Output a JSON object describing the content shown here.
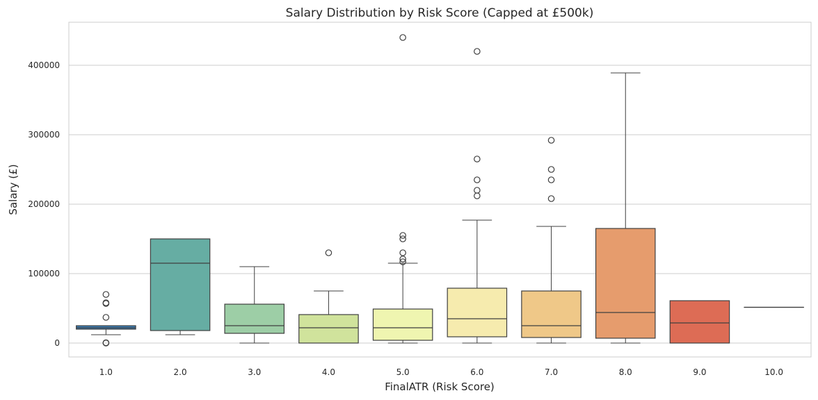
{
  "chart_data": {
    "type": "box",
    "title": "Salary Distribution by Risk Score (Capped at £500k)",
    "xlabel": "FinalATR (Risk Score)",
    "ylabel": "Salary (£)",
    "ylim": [
      -20000,
      462000
    ],
    "yticks": [
      0,
      100000,
      200000,
      300000,
      400000
    ],
    "grid": "horizontal",
    "categories": [
      "1.0",
      "2.0",
      "3.0",
      "4.0",
      "5.0",
      "6.0",
      "7.0",
      "8.0",
      "9.0",
      "10.0"
    ],
    "boxes": [
      {
        "category": "1.0",
        "color": "#3a7fb8",
        "whisker_low": 12000,
        "q1": 20000,
        "median": 22000,
        "q3": 25000,
        "whisker_high": 25000,
        "outliers": [
          70000,
          58000,
          57000,
          37000,
          500,
          0
        ]
      },
      {
        "category": "2.0",
        "color": "#66ada3",
        "whisker_low": 12000,
        "q1": 18000,
        "median": 115000,
        "q3": 150000,
        "whisker_high": 150000,
        "outliers": []
      },
      {
        "category": "3.0",
        "color": "#9dcea6",
        "whisker_low": 0,
        "q1": 14000,
        "median": 25000,
        "q3": 56000,
        "whisker_high": 110000,
        "outliers": []
      },
      {
        "category": "4.0",
        "color": "#d0e39c",
        "whisker_low": 0,
        "q1": 0,
        "median": 22000,
        "q3": 41000,
        "whisker_high": 75000,
        "outliers": [
          130000
        ]
      },
      {
        "category": "5.0",
        "color": "#eff5b0",
        "whisker_low": 0,
        "q1": 4000,
        "median": 22000,
        "q3": 49000,
        "whisker_high": 115000,
        "outliers": [
          440000,
          155000,
          150000,
          130000,
          121000,
          117000
        ]
      },
      {
        "category": "6.0",
        "color": "#f6ebae",
        "whisker_low": 0,
        "q1": 9000,
        "median": 35000,
        "q3": 79000,
        "whisker_high": 177000,
        "outliers": [
          420000,
          265000,
          235000,
          220000,
          212000
        ]
      },
      {
        "category": "7.0",
        "color": "#efc888",
        "whisker_low": 0,
        "q1": 8000,
        "median": 25000,
        "q3": 75000,
        "whisker_high": 168000,
        "outliers": [
          292000,
          250000,
          235000,
          208000
        ]
      },
      {
        "category": "8.0",
        "color": "#e69c6d",
        "whisker_low": 0,
        "q1": 7000,
        "median": 44000,
        "q3": 165000,
        "whisker_high": 389000,
        "outliers": []
      },
      {
        "category": "9.0",
        "color": "#dd6c55",
        "whisker_low": 0,
        "q1": 0,
        "median": 29000,
        "q3": 61000,
        "whisker_high": 61000,
        "outliers": []
      },
      {
        "category": "10.0",
        "color": "#c33d4a",
        "whisker_low": 51500,
        "q1": 51500,
        "median": 51500,
        "q3": 51500,
        "whisker_high": 51500,
        "outliers": []
      }
    ]
  }
}
